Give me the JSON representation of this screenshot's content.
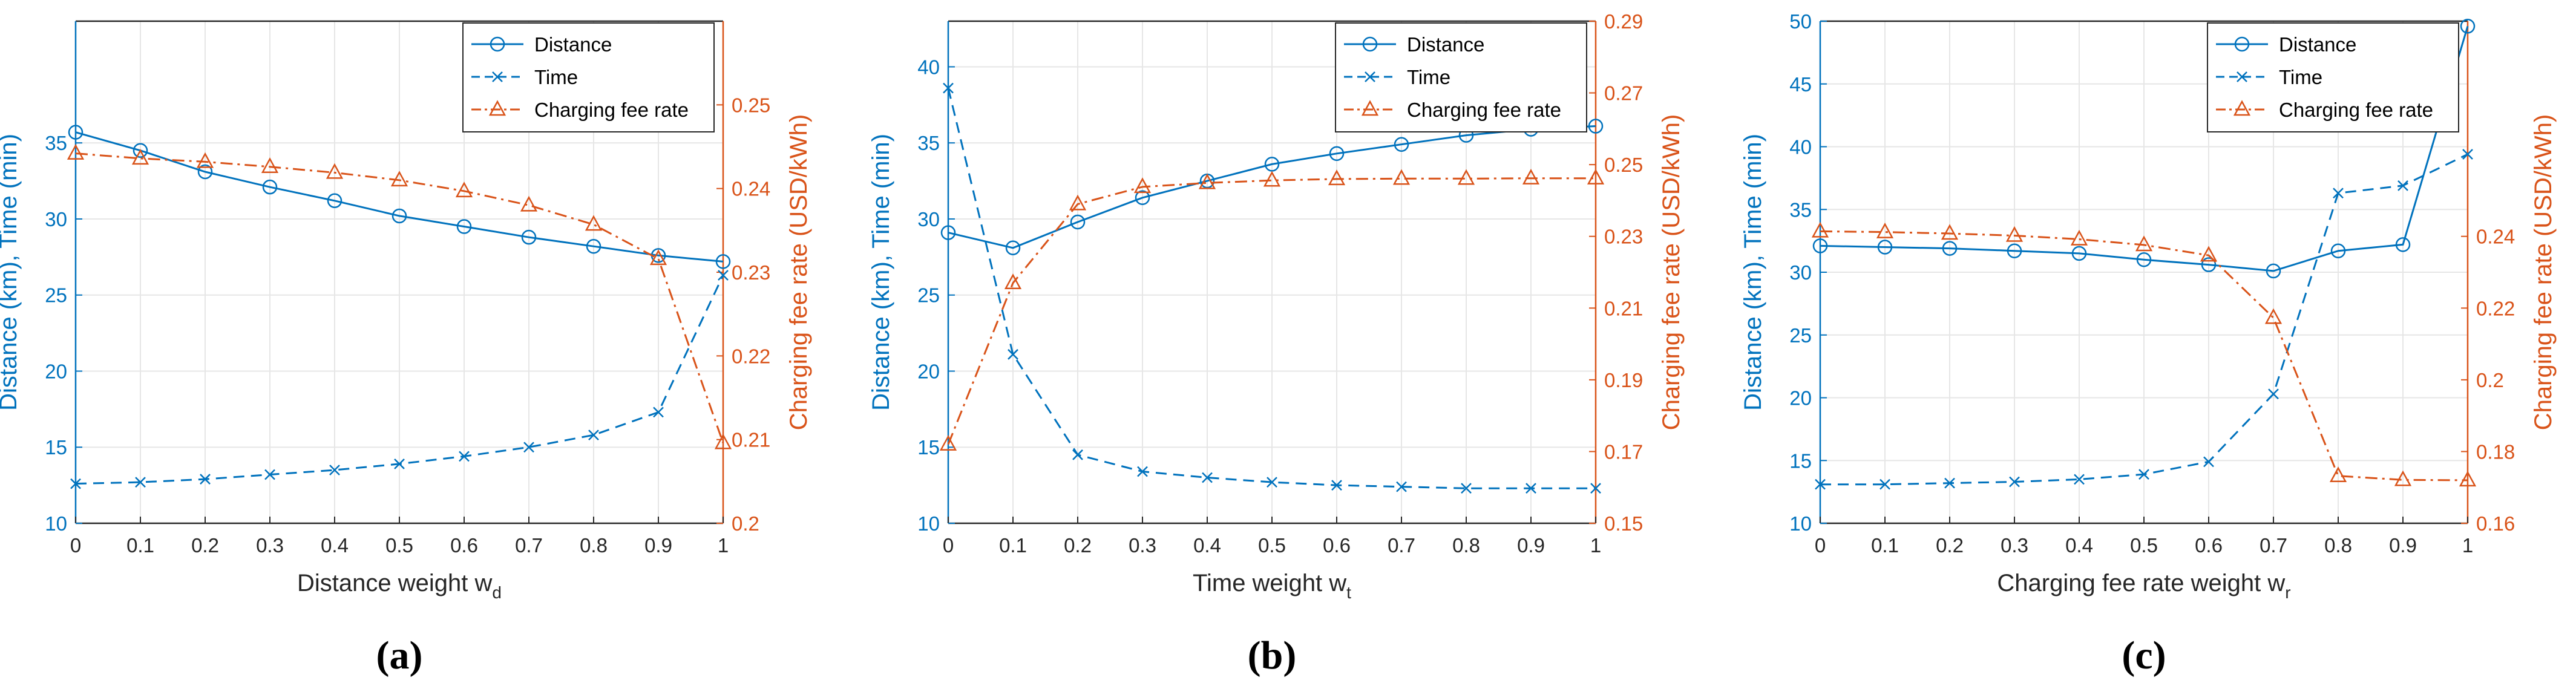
{
  "colors": {
    "left_axis": "#0072BD",
    "right_axis": "#D95319",
    "grid": "#e6e6e6",
    "frame": "#262626"
  },
  "legend": {
    "distance": "Distance",
    "time": "Time",
    "fee": "Charging fee rate"
  },
  "left_ylabel": "Distance (km), Time (min)",
  "right_ylabel": "Charging fee rate (USD/kWh)",
  "chart_data": [
    {
      "type": "line",
      "panel_label": "(a)",
      "xlabel_text": "Distance weight w",
      "xlabel_sub": "d",
      "x": [
        0,
        0.1,
        0.2,
        0.3,
        0.4,
        0.5,
        0.6,
        0.7,
        0.8,
        0.9,
        1
      ],
      "xticks": [
        "0",
        "0.1",
        "0.2",
        "0.3",
        "0.4",
        "0.5",
        "0.6",
        "0.7",
        "0.8",
        "0.9",
        "1"
      ],
      "xlim": [
        0,
        1
      ],
      "ylim_left": [
        10,
        43
      ],
      "yticks_left": [
        10,
        15,
        20,
        25,
        30,
        35
      ],
      "ylim_right": [
        0.2,
        0.26
      ],
      "yticks_right": [
        "0.2",
        "0.21",
        "0.22",
        "0.23",
        "0.24",
        "0.25"
      ],
      "series": [
        {
          "name": "Distance",
          "axis": "left",
          "marker": "circle",
          "style": "solid",
          "values": [
            35.7,
            34.5,
            33.1,
            32.1,
            31.2,
            30.2,
            29.5,
            28.8,
            28.2,
            27.6,
            27.2
          ]
        },
        {
          "name": "Time",
          "axis": "left",
          "marker": "x",
          "style": "dashed",
          "values": [
            12.6,
            12.7,
            12.9,
            13.2,
            13.5,
            13.9,
            14.4,
            15.0,
            15.8,
            17.3,
            26.3
          ]
        },
        {
          "name": "Charging fee rate",
          "axis": "right",
          "marker": "triangle",
          "style": "dashdot",
          "values": [
            0.2442,
            0.2436,
            0.2432,
            0.2426,
            0.2419,
            0.241,
            0.2397,
            0.238,
            0.2357,
            0.2316,
            0.2096
          ]
        }
      ]
    },
    {
      "type": "line",
      "panel_label": "(b)",
      "xlabel_text": "Time weight w",
      "xlabel_sub": "t",
      "x": [
        0,
        0.1,
        0.2,
        0.3,
        0.4,
        0.5,
        0.6,
        0.7,
        0.8,
        0.9,
        1
      ],
      "xticks": [
        "0",
        "0.1",
        "0.2",
        "0.3",
        "0.4",
        "0.5",
        "0.6",
        "0.7",
        "0.8",
        "0.9",
        "1"
      ],
      "xlim": [
        0,
        1
      ],
      "ylim_left": [
        10,
        43
      ],
      "yticks_left": [
        10,
        15,
        20,
        25,
        30,
        35,
        40
      ],
      "ylim_right": [
        0.15,
        0.29
      ],
      "yticks_right": [
        "0.15",
        "0.17",
        "0.19",
        "0.21",
        "0.23",
        "0.25",
        "0.27",
        "0.29"
      ],
      "series": [
        {
          "name": "Distance",
          "axis": "left",
          "marker": "circle",
          "style": "solid",
          "values": [
            29.1,
            28.1,
            29.8,
            31.4,
            32.5,
            33.6,
            34.3,
            34.9,
            35.5,
            35.9,
            36.1
          ]
        },
        {
          "name": "Time",
          "axis": "left",
          "marker": "x",
          "style": "dashed",
          "values": [
            38.6,
            21.1,
            14.5,
            13.4,
            13.0,
            12.7,
            12.5,
            12.4,
            12.3,
            12.3,
            12.3
          ]
        },
        {
          "name": "Charging fee rate",
          "axis": "right",
          "marker": "triangle",
          "style": "dashdot",
          "values": [
            0.172,
            0.217,
            0.239,
            0.2438,
            0.2449,
            0.2456,
            0.246,
            0.2461,
            0.2461,
            0.2462,
            0.2462
          ]
        }
      ]
    },
    {
      "type": "line",
      "panel_label": "(c)",
      "xlabel_text": "Charging fee rate weight w",
      "xlabel_sub": "r",
      "x": [
        0,
        0.1,
        0.2,
        0.3,
        0.4,
        0.5,
        0.6,
        0.7,
        0.8,
        0.9,
        1
      ],
      "xticks": [
        "0",
        "0.1",
        "0.2",
        "0.3",
        "0.4",
        "0.5",
        "0.6",
        "0.7",
        "0.8",
        "0.9",
        "1"
      ],
      "xlim": [
        0,
        1
      ],
      "ylim_left": [
        10,
        50
      ],
      "yticks_left": [
        10,
        15,
        20,
        25,
        30,
        35,
        40,
        45,
        50
      ],
      "ylim_right": [
        0.16,
        0.3
      ],
      "yticks_right": [
        "0.16",
        "0.18",
        "0.2",
        "0.22",
        "0.24"
      ],
      "series": [
        {
          "name": "Distance",
          "axis": "left",
          "marker": "circle",
          "style": "solid",
          "values": [
            32.1,
            32.0,
            31.9,
            31.7,
            31.5,
            31.0,
            30.6,
            30.1,
            31.7,
            32.2,
            49.6
          ]
        },
        {
          "name": "Time",
          "axis": "left",
          "marker": "x",
          "style": "dashed",
          "values": [
            13.1,
            13.1,
            13.2,
            13.3,
            13.5,
            13.9,
            14.9,
            20.3,
            36.3,
            36.9,
            39.4
          ]
        },
        {
          "name": "Charging fee rate",
          "axis": "right",
          "marker": "triangle",
          "style": "dashdot",
          "values": [
            0.2414,
            0.2412,
            0.2408,
            0.2402,
            0.2392,
            0.2376,
            0.2347,
            0.2173,
            0.1732,
            0.1721,
            0.172
          ]
        }
      ]
    }
  ]
}
